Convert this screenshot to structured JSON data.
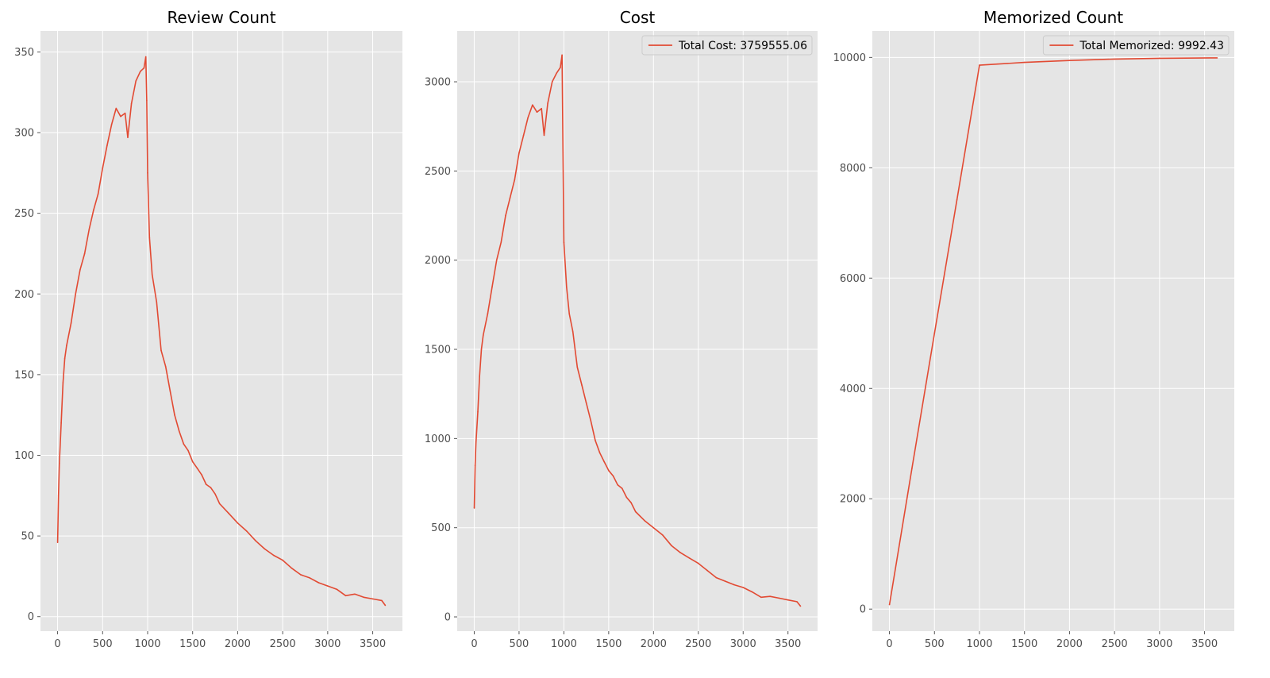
{
  "chart_data": [
    {
      "type": "line",
      "title": "Review Count",
      "xlabel": "",
      "ylabel": "",
      "xlim": [
        -190,
        3830
      ],
      "ylim": [
        -9,
        363
      ],
      "x_ticks": [
        "0",
        "500",
        "1000",
        "1500",
        "2000",
        "2500",
        "3000",
        "3500"
      ],
      "y_ticks": [
        "0",
        "50",
        "100",
        "150",
        "200",
        "250",
        "300",
        "350"
      ],
      "grid": true,
      "legend": null,
      "series": [
        {
          "color": "#E24A33",
          "points": [
            [
              0,
              46
            ],
            [
              10,
              75
            ],
            [
              20,
              95
            ],
            [
              40,
              120
            ],
            [
              60,
              145
            ],
            [
              80,
              160
            ],
            [
              100,
              168
            ],
            [
              150,
              182
            ],
            [
              200,
              200
            ],
            [
              250,
              215
            ],
            [
              300,
              225
            ],
            [
              350,
              240
            ],
            [
              400,
              252
            ],
            [
              450,
              262
            ],
            [
              500,
              278
            ],
            [
              550,
              292
            ],
            [
              600,
              305
            ],
            [
              650,
              315
            ],
            [
              700,
              310
            ],
            [
              750,
              312
            ],
            [
              780,
              297
            ],
            [
              820,
              318
            ],
            [
              870,
              332
            ],
            [
              920,
              338
            ],
            [
              960,
              340
            ],
            [
              980,
              347
            ],
            [
              990,
              320
            ],
            [
              1000,
              275
            ],
            [
              1020,
              235
            ],
            [
              1050,
              212
            ],
            [
              1100,
              195
            ],
            [
              1150,
              165
            ],
            [
              1200,
              155
            ],
            [
              1250,
              140
            ],
            [
              1300,
              125
            ],
            [
              1350,
              115
            ],
            [
              1400,
              107
            ],
            [
              1450,
              103
            ],
            [
              1500,
              96
            ],
            [
              1550,
              92
            ],
            [
              1600,
              88
            ],
            [
              1650,
              82
            ],
            [
              1700,
              80
            ],
            [
              1750,
              76
            ],
            [
              1800,
              70
            ],
            [
              1900,
              64
            ],
            [
              2000,
              58
            ],
            [
              2100,
              53
            ],
            [
              2200,
              47
            ],
            [
              2300,
              42
            ],
            [
              2400,
              38
            ],
            [
              2500,
              35
            ],
            [
              2600,
              30
            ],
            [
              2700,
              26
            ],
            [
              2800,
              24
            ],
            [
              2900,
              21
            ],
            [
              3000,
              19
            ],
            [
              3100,
              17
            ],
            [
              3200,
              13
            ],
            [
              3300,
              14
            ],
            [
              3400,
              12
            ],
            [
              3500,
              11
            ],
            [
              3600,
              10
            ],
            [
              3640,
              7
            ]
          ]
        }
      ]
    },
    {
      "type": "line",
      "title": "Cost",
      "xlabel": "",
      "ylabel": "",
      "xlim": [
        -190,
        3830
      ],
      "ylim": [
        -80,
        3285
      ],
      "x_ticks": [
        "0",
        "500",
        "1000",
        "1500",
        "2000",
        "2500",
        "3000",
        "3500"
      ],
      "y_ticks": [
        "0",
        "500",
        "1000",
        "1500",
        "2000",
        "2500",
        "3000"
      ],
      "grid": true,
      "legend": "top-right",
      "series": [
        {
          "name": "Total Cost: 3759555.06",
          "color": "#E24A33",
          "points": [
            [
              0,
              610
            ],
            [
              10,
              850
            ],
            [
              20,
              980
            ],
            [
              40,
              1150
            ],
            [
              60,
              1350
            ],
            [
              80,
              1500
            ],
            [
              100,
              1580
            ],
            [
              150,
              1700
            ],
            [
              200,
              1850
            ],
            [
              250,
              2000
            ],
            [
              300,
              2100
            ],
            [
              350,
              2250
            ],
            [
              400,
              2350
            ],
            [
              450,
              2450
            ],
            [
              500,
              2600
            ],
            [
              550,
              2700
            ],
            [
              600,
              2800
            ],
            [
              650,
              2870
            ],
            [
              700,
              2830
            ],
            [
              750,
              2850
            ],
            [
              780,
              2700
            ],
            [
              820,
              2880
            ],
            [
              870,
              3000
            ],
            [
              920,
              3050
            ],
            [
              960,
              3080
            ],
            [
              980,
              3150
            ],
            [
              990,
              2600
            ],
            [
              1000,
              2100
            ],
            [
              1030,
              1850
            ],
            [
              1060,
              1700
            ],
            [
              1100,
              1600
            ],
            [
              1150,
              1400
            ],
            [
              1200,
              1300
            ],
            [
              1250,
              1200
            ],
            [
              1300,
              1100
            ],
            [
              1350,
              990
            ],
            [
              1400,
              920
            ],
            [
              1450,
              870
            ],
            [
              1500,
              820
            ],
            [
              1550,
              790
            ],
            [
              1600,
              740
            ],
            [
              1650,
              720
            ],
            [
              1700,
              670
            ],
            [
              1750,
              640
            ],
            [
              1800,
              590
            ],
            [
              1900,
              540
            ],
            [
              2000,
              500
            ],
            [
              2100,
              460
            ],
            [
              2200,
              400
            ],
            [
              2300,
              360
            ],
            [
              2400,
              330
            ],
            [
              2500,
              300
            ],
            [
              2600,
              260
            ],
            [
              2700,
              220
            ],
            [
              2800,
              200
            ],
            [
              2900,
              180
            ],
            [
              3000,
              165
            ],
            [
              3100,
              140
            ],
            [
              3200,
              110
            ],
            [
              3300,
              115
            ],
            [
              3400,
              105
            ],
            [
              3500,
              95
            ],
            [
              3600,
              85
            ],
            [
              3640,
              60
            ]
          ]
        }
      ]
    },
    {
      "type": "line",
      "title": "Memorized Count",
      "xlabel": "",
      "ylabel": "",
      "xlim": [
        -190,
        3830
      ],
      "ylim": [
        -400,
        10480
      ],
      "x_ticks": [
        "0",
        "500",
        "1000",
        "1500",
        "2000",
        "2500",
        "3000",
        "3500"
      ],
      "y_ticks": [
        "0",
        "2000",
        "4000",
        "6000",
        "8000",
        "10000"
      ],
      "grid": true,
      "legend": "top-right",
      "series": [
        {
          "name": "Total Memorized: 9992.43",
          "color": "#E24A33",
          "points": [
            [
              0,
              80
            ],
            [
              250,
              2550
            ],
            [
              500,
              5000
            ],
            [
              750,
              7420
            ],
            [
              1000,
              9860
            ],
            [
              1200,
              9880
            ],
            [
              1500,
              9910
            ],
            [
              2000,
              9945
            ],
            [
              2500,
              9970
            ],
            [
              3000,
              9985
            ],
            [
              3640,
              9992.43
            ]
          ]
        }
      ]
    }
  ]
}
